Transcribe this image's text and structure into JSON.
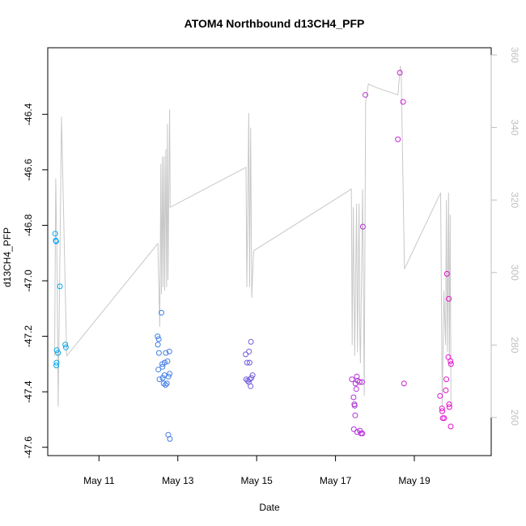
{
  "chart_data": {
    "type": "scatter",
    "title": "ATOM4 Northbound d13CH4_PFP",
    "xlabel": "Date",
    "ylabel": "d13CH4_PFP",
    "x_ticks": [
      {
        "date": "2016-05-11",
        "label": "May 11"
      },
      {
        "date": "2016-05-13",
        "label": "May 13"
      },
      {
        "date": "2016-05-15",
        "label": "May 15"
      },
      {
        "date": "2016-05-17",
        "label": "May 17"
      },
      {
        "date": "2016-05-19",
        "label": "May 19"
      }
    ],
    "xlim": [
      "2016-05-09T16:48",
      "2016-05-20T22:48"
    ],
    "ylim": [
      -47.63,
      -46.16
    ],
    "y_ticks": [
      -47.6,
      -47.4,
      -47.2,
      -47.0,
      -46.8,
      -46.6,
      -46.4
    ],
    "y2lim": [
      249.5,
      362
    ],
    "y2_ticks": [
      260,
      280,
      300,
      320,
      340,
      360
    ],
    "grid": false,
    "series": [
      {
        "color_start": "#00aaee",
        "color_end": "#ff00cc",
        "marker": "circle-open",
        "points": [
          {
            "x": "2016-05-09T21:20",
            "y": -46.83
          },
          {
            "x": "2016-05-09T21:40",
            "y": -46.855
          },
          {
            "x": "2016-05-09T21:55",
            "y": -46.858
          },
          {
            "x": "2016-05-10T00:10",
            "y": -47.02
          },
          {
            "x": "2016-05-09T22:20",
            "y": -47.25
          },
          {
            "x": "2016-05-09T23:00",
            "y": -47.26
          },
          {
            "x": "2016-05-09T22:10",
            "y": -47.295
          },
          {
            "x": "2016-05-09T22:00",
            "y": -47.305
          },
          {
            "x": "2016-05-10T03:30",
            "y": -47.23
          },
          {
            "x": "2016-05-10T03:50",
            "y": -47.24
          },
          {
            "x": "2016-05-12T11:40",
            "y": -47.2
          },
          {
            "x": "2016-05-12T14:00",
            "y": -47.115
          },
          {
            "x": "2016-05-12T12:20",
            "y": -47.21
          },
          {
            "x": "2016-05-12T11:50",
            "y": -47.23
          },
          {
            "x": "2016-05-12T12:30",
            "y": -47.26
          },
          {
            "x": "2016-05-12T16:40",
            "y": -47.26
          },
          {
            "x": "2016-05-12T18:50",
            "y": -47.255
          },
          {
            "x": "2016-05-12T14:30",
            "y": -47.3
          },
          {
            "x": "2016-05-12T16:00",
            "y": -47.295
          },
          {
            "x": "2016-05-12T17:40",
            "y": -47.29
          },
          {
            "x": "2016-05-12T12:10",
            "y": -47.32
          },
          {
            "x": "2016-05-12T14:40",
            "y": -47.31
          },
          {
            "x": "2016-05-12T15:50",
            "y": -47.34
          },
          {
            "x": "2016-05-12T19:00",
            "y": -47.335
          },
          {
            "x": "2016-05-12T18:20",
            "y": -47.345
          },
          {
            "x": "2016-05-12T12:50",
            "y": -47.355
          },
          {
            "x": "2016-05-12T14:50",
            "y": -47.35
          },
          {
            "x": "2016-05-12T15:20",
            "y": -47.37
          },
          {
            "x": "2016-05-12T16:30",
            "y": -47.375
          },
          {
            "x": "2016-05-12T17:20",
            "y": -47.37
          },
          {
            "x": "2016-05-12T18:10",
            "y": -47.555
          },
          {
            "x": "2016-05-12T19:10",
            "y": -47.57
          },
          {
            "x": "2016-05-14T17:20",
            "y": -47.265
          },
          {
            "x": "2016-05-14T19:20",
            "y": -47.255
          },
          {
            "x": "2016-05-14T20:30",
            "y": -47.22
          },
          {
            "x": "2016-05-14T18:10",
            "y": -47.295
          },
          {
            "x": "2016-05-14T19:40",
            "y": -47.295
          },
          {
            "x": "2016-05-14T21:30",
            "y": -47.34
          },
          {
            "x": "2016-05-14T20:50",
            "y": -47.35
          },
          {
            "x": "2016-05-14T17:40",
            "y": -47.355
          },
          {
            "x": "2016-05-14T18:30",
            "y": -47.36
          },
          {
            "x": "2016-05-14T19:10",
            "y": -47.365
          },
          {
            "x": "2016-05-14T19:50",
            "y": -47.355
          },
          {
            "x": "2016-05-14T20:20",
            "y": -47.38
          },
          {
            "x": "2016-05-17T10:00",
            "y": -47.355
          },
          {
            "x": "2016-05-17T13:00",
            "y": -47.345
          },
          {
            "x": "2016-05-17T13:30",
            "y": -47.36
          },
          {
            "x": "2016-05-17T14:40",
            "y": -47.365
          },
          {
            "x": "2016-05-17T16:10",
            "y": -47.365
          },
          {
            "x": "2016-05-17T12:10",
            "y": -47.37
          },
          {
            "x": "2016-05-17T12:40",
            "y": -47.39
          },
          {
            "x": "2016-05-17T11:00",
            "y": -47.42
          },
          {
            "x": "2016-05-17T11:30",
            "y": -47.445
          },
          {
            "x": "2016-05-17T11:40",
            "y": -47.45
          },
          {
            "x": "2016-05-17T12:00",
            "y": -47.485
          },
          {
            "x": "2016-05-17T11:10",
            "y": -47.535
          },
          {
            "x": "2016-05-17T13:10",
            "y": -47.545
          },
          {
            "x": "2016-05-17T14:50",
            "y": -47.54
          },
          {
            "x": "2016-05-17T15:30",
            "y": -47.55
          },
          {
            "x": "2016-05-17T16:20",
            "y": -47.55
          },
          {
            "x": "2016-05-17T16:40",
            "y": -46.805
          },
          {
            "x": "2016-05-17T18:10",
            "y": -46.33
          },
          {
            "x": "2016-05-18T14:00",
            "y": -46.49
          },
          {
            "x": "2016-05-18T15:10",
            "y": -46.25
          },
          {
            "x": "2016-05-18T17:10",
            "y": -46.355
          },
          {
            "x": "2016-05-18T17:40",
            "y": -47.37
          },
          {
            "x": "2016-05-19T15:40",
            "y": -47.415
          },
          {
            "x": "2016-05-19T16:50",
            "y": -47.46
          },
          {
            "x": "2016-05-19T17:00",
            "y": -47.47
          },
          {
            "x": "2016-05-19T17:20",
            "y": -47.495
          },
          {
            "x": "2016-05-19T18:10",
            "y": -47.495
          },
          {
            "x": "2016-05-19T19:10",
            "y": -47.395
          },
          {
            "x": "2016-05-19T19:30",
            "y": -47.355
          },
          {
            "x": "2016-05-19T19:50",
            "y": -46.975
          },
          {
            "x": "2016-05-19T21:00",
            "y": -47.065
          },
          {
            "x": "2016-05-19T20:40",
            "y": -47.275
          },
          {
            "x": "2016-05-19T22:00",
            "y": -47.29
          },
          {
            "x": "2016-05-19T22:20",
            "y": -47.3
          },
          {
            "x": "2016-05-19T21:10",
            "y": -47.445
          },
          {
            "x": "2016-05-19T21:20",
            "y": -47.455
          },
          {
            "x": "2016-05-19T22:10",
            "y": -47.525
          }
        ]
      },
      {
        "color": "#c8c8c8",
        "axis": "right",
        "style": "line",
        "points": [
          {
            "x": "2016-05-09T21:00",
            "y": 277
          },
          {
            "x": "2016-05-09T21:40",
            "y": 326
          },
          {
            "x": "2016-05-09T22:30",
            "y": 300
          },
          {
            "x": "2016-05-09T23:10",
            "y": 263
          },
          {
            "x": "2016-05-10T01:10",
            "y": 343
          },
          {
            "x": "2016-05-10T04:20",
            "y": 277
          },
          {
            "x": "2016-05-12T11:50",
            "y": 308
          },
          {
            "x": "2016-05-12T13:00",
            "y": 285
          },
          {
            "x": "2016-05-12T13:40",
            "y": 330
          },
          {
            "x": "2016-05-12T14:00",
            "y": 294
          },
          {
            "x": "2016-05-12T14:40",
            "y": 332
          },
          {
            "x": "2016-05-12T15:00",
            "y": 296
          },
          {
            "x": "2016-05-12T15:40",
            "y": 332
          },
          {
            "x": "2016-05-12T16:00",
            "y": 295
          },
          {
            "x": "2016-05-12T16:40",
            "y": 334
          },
          {
            "x": "2016-05-12T17:10",
            "y": 296
          },
          {
            "x": "2016-05-12T17:40",
            "y": 341
          },
          {
            "x": "2016-05-12T18:00",
            "y": 298
          },
          {
            "x": "2016-05-12T19:00",
            "y": 345
          },
          {
            "x": "2016-05-12T19:20",
            "y": 318
          },
          {
            "x": "2016-05-14T17:30",
            "y": 329
          },
          {
            "x": "2016-05-14T18:00",
            "y": 296
          },
          {
            "x": "2016-05-14T19:10",
            "y": 344
          },
          {
            "x": "2016-05-14T19:40",
            "y": 296
          },
          {
            "x": "2016-05-14T20:20",
            "y": 340
          },
          {
            "x": "2016-05-14T21:00",
            "y": 293
          },
          {
            "x": "2016-05-14T22:10",
            "y": 306
          },
          {
            "x": "2016-05-17T09:40",
            "y": 323
          },
          {
            "x": "2016-05-17T10:10",
            "y": 280
          },
          {
            "x": "2016-05-17T10:50",
            "y": 318
          },
          {
            "x": "2016-05-17T11:40",
            "y": 277
          },
          {
            "x": "2016-05-17T12:50",
            "y": 319
          },
          {
            "x": "2016-05-17T13:20",
            "y": 278
          },
          {
            "x": "2016-05-17T14:20",
            "y": 319
          },
          {
            "x": "2016-05-17T14:50",
            "y": 282
          },
          {
            "x": "2016-05-17T15:10",
            "y": 275
          },
          {
            "x": "2016-05-17T16:30",
            "y": 323
          },
          {
            "x": "2016-05-17T17:30",
            "y": 266
          },
          {
            "x": "2016-05-17T18:20",
            "y": 347
          },
          {
            "x": "2016-05-17T20:00",
            "y": 352
          },
          {
            "x": "2016-05-18T01:00",
            "y": 351
          },
          {
            "x": "2016-05-18T14:00",
            "y": 349
          },
          {
            "x": "2016-05-18T15:30",
            "y": 357
          },
          {
            "x": "2016-05-18T16:00",
            "y": 355
          },
          {
            "x": "2016-05-18T18:00",
            "y": 301
          },
          {
            "x": "2016-05-19T16:00",
            "y": 322
          },
          {
            "x": "2016-05-19T17:00",
            "y": 263
          },
          {
            "x": "2016-05-19T18:00",
            "y": 295
          },
          {
            "x": "2016-05-19T19:00",
            "y": 280
          },
          {
            "x": "2016-05-19T19:30",
            "y": 320
          },
          {
            "x": "2016-05-19T20:10",
            "y": 278
          },
          {
            "x": "2016-05-19T20:50",
            "y": 322
          },
          {
            "x": "2016-05-19T21:20",
            "y": 276
          },
          {
            "x": "2016-05-19T21:50",
            "y": 316
          },
          {
            "x": "2016-05-19T22:20",
            "y": 264
          }
        ]
      }
    ]
  }
}
